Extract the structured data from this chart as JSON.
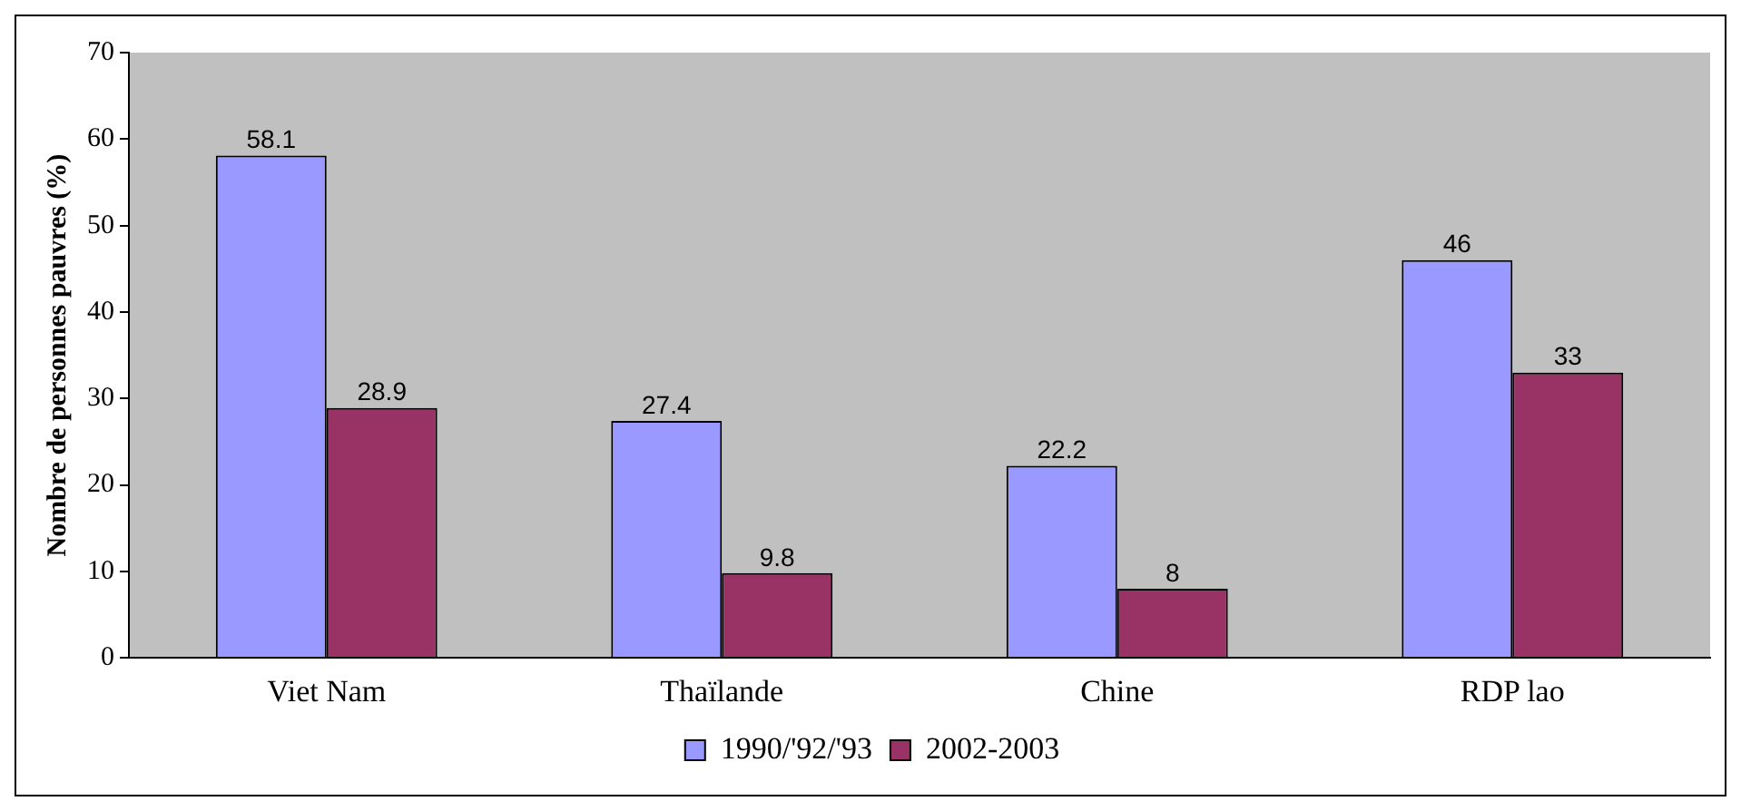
{
  "chart_data": {
    "type": "bar",
    "ylabel": "Nombre de personnes pauvres (%)",
    "categories": [
      "Viet Nam",
      "Thaïlande",
      "Chine",
      "RDP lao"
    ],
    "series": [
      {
        "name": "1990/'92/'93",
        "color": "#9999ff",
        "values": [
          58.1,
          27.4,
          22.2,
          46
        ]
      },
      {
        "name": "2002-2003",
        "color": "#993366",
        "values": [
          28.9,
          9.8,
          8,
          33
        ]
      }
    ],
    "ylim": [
      0,
      70
    ],
    "yticks": [
      0,
      10,
      20,
      30,
      40,
      50,
      60,
      70
    ],
    "grid": false,
    "legend": "bottom",
    "data_labels": true
  }
}
